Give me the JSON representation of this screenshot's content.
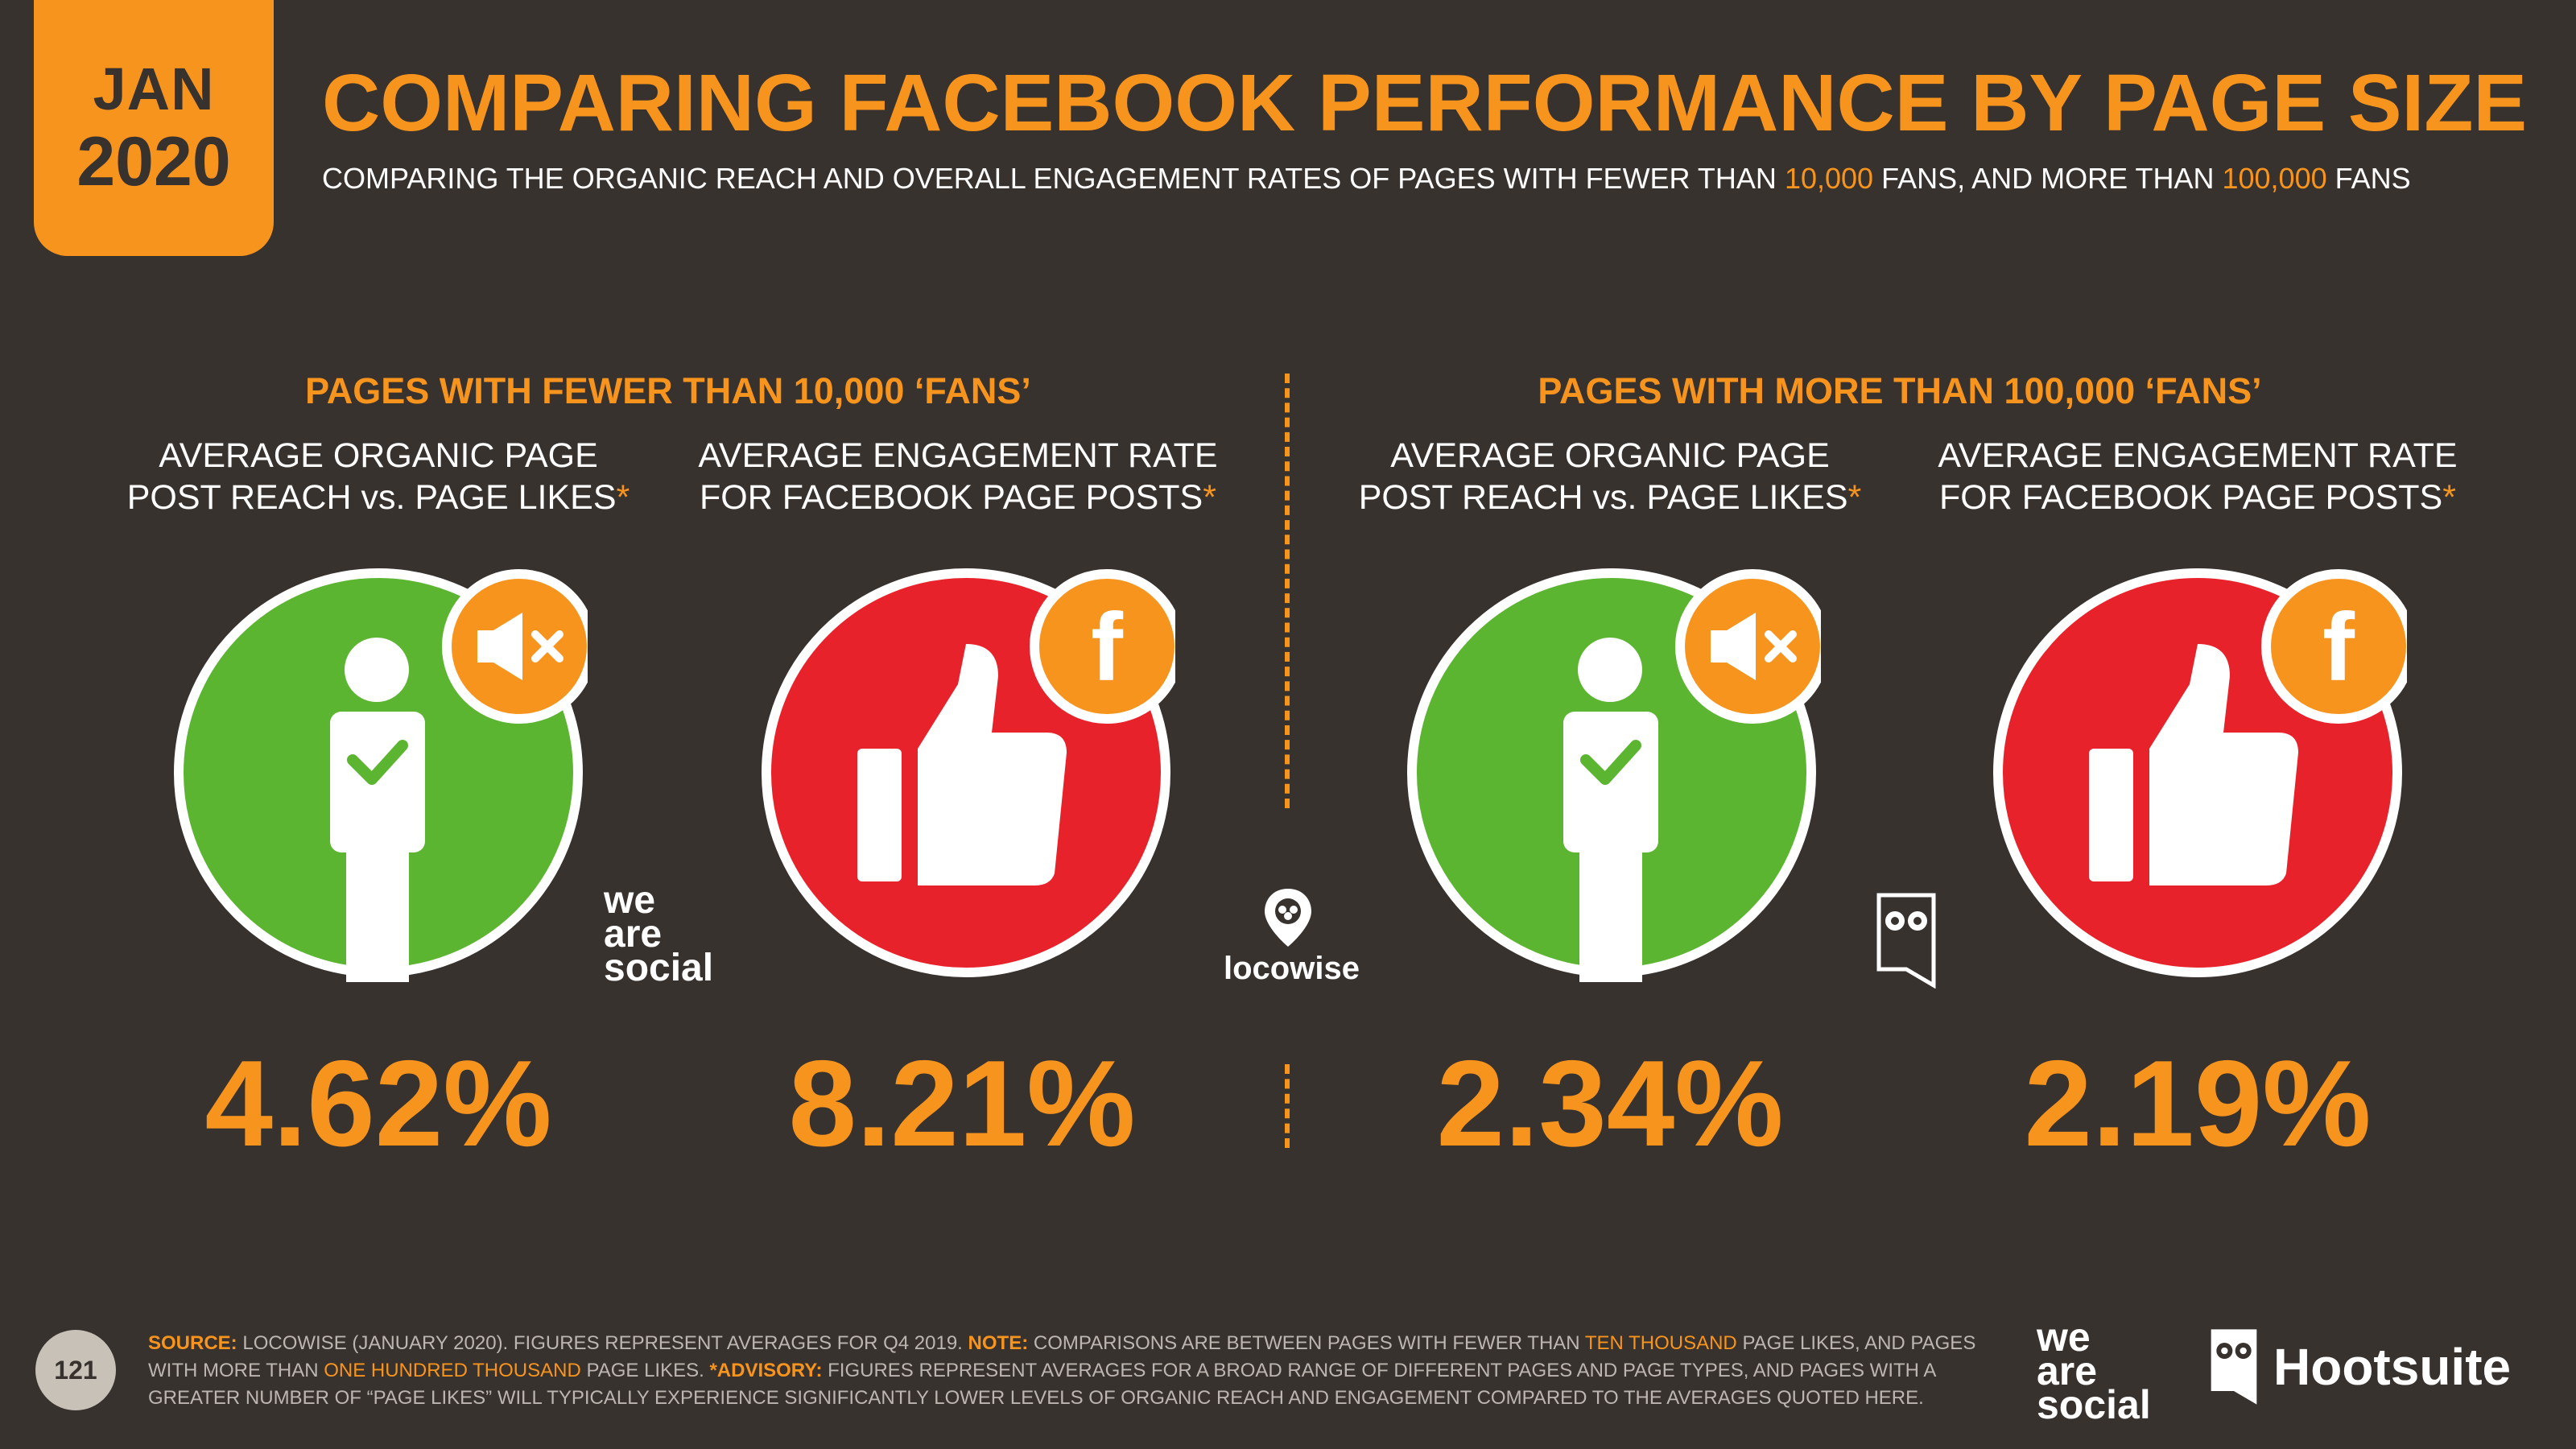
{
  "badge": {
    "month": "JAN",
    "year": "2020"
  },
  "title": "COMPARING FACEBOOK PERFORMANCE BY PAGE SIZE",
  "subtitle": {
    "part1": "COMPARING THE ORGANIC REACH AND OVERALL ENGAGEMENT RATES OF PAGES WITH FEWER THAN",
    "num1": "10,000",
    "part2": "FANS, AND MORE THAN",
    "num2": "100,000",
    "part3": "FANS"
  },
  "sections": {
    "left_heading": "PAGES WITH FEWER THAN 10,000 ‘FANS’",
    "right_heading": "PAGES WITH MORE THAN 100,000 ‘FANS’"
  },
  "metrics": [
    {
      "line1": "AVERAGE ORGANIC PAGE",
      "line2": "POST REACH vs. PAGE LIKES",
      "star": "*",
      "value": "4.62%",
      "icon": "person-check-icon",
      "badge_icon": "megaphone-mute-icon",
      "color": "#5cb531"
    },
    {
      "line1": "AVERAGE ENGAGEMENT RATE",
      "line2": "FOR FACEBOOK PAGE POSTS",
      "star": "*",
      "value": "8.21%",
      "icon": "thumbs-up-icon",
      "badge_icon": "facebook-icon",
      "color": "#e8222b"
    },
    {
      "line1": "AVERAGE ORGANIC PAGE",
      "line2": "POST REACH vs. PAGE LIKES",
      "star": "*",
      "value": "2.34%",
      "icon": "person-check-icon",
      "badge_icon": "megaphone-mute-icon",
      "color": "#5cb531"
    },
    {
      "line1": "AVERAGE ENGAGEMENT RATE",
      "line2": "FOR FACEBOOK PAGE POSTS",
      "star": "*",
      "value": "2.19%",
      "icon": "thumbs-up-icon",
      "badge_icon": "facebook-icon",
      "color": "#e8222b"
    }
  ],
  "logos": {
    "wearesocial": [
      "we",
      "are",
      "social"
    ],
    "locowise": "locowise",
    "hootsuite": "Hootsuite",
    "facebook_letter": "f"
  },
  "footer": {
    "page_number": "121",
    "source_label": "SOURCE:",
    "source_text": "LOCOWISE (JANUARY 2020). FIGURES REPRESENT AVERAGES FOR Q4 2019.",
    "note_label": "NOTE:",
    "note_text1": "COMPARISONS ARE BETWEEN PAGES WITH FEWER THAN",
    "note_hl1": "TEN THOUSAND",
    "note_text2": "PAGE LIKES, AND PAGES WITH MORE THAN",
    "note_hl2": "ONE HUNDRED THOUSAND",
    "note_text3": "PAGE LIKES.",
    "advisory_label": "*ADVISORY:",
    "advisory_text": "FIGURES REPRESENT AVERAGES FOR A BROAD RANGE OF DIFFERENT PAGES AND PAGE TYPES, AND PAGES WITH A GREATER NUMBER OF “PAGE LIKES” WILL TYPICALLY EXPERIENCE SIGNIFICANTLY LOWER LEVELS OF ORGANIC REACH AND ENGAGEMENT COMPARED TO THE AVERAGES QUOTED HERE."
  },
  "colors": {
    "background": "#38322e",
    "accent": "#f7941d",
    "green": "#5cb531",
    "red": "#e8222b"
  }
}
